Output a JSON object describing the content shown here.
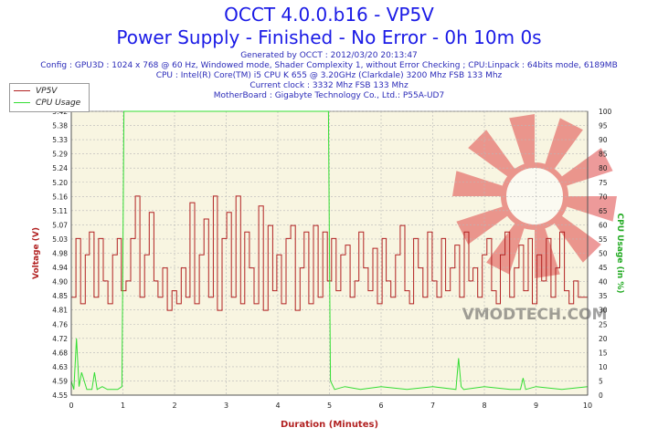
{
  "header": {
    "title": "OCCT 4.0.0.b16 - VP5V",
    "subtitle": "Power Supply - Finished - No Error - 0h 10m 0s",
    "info_lines": [
      "Generated by OCCT : 2012/03/20 20:13:47",
      "Config : GPU3D : 1024 x 768 @ 60 Hz, Windowed mode, Shader Complexity 1, without Error Checking ; CPU:Linpack : 64bits mode, 6189MB",
      "CPU : Intel(R) Core(TM) i5 CPU K 655 @ 3.20GHz (Clarkdale) 3200 Mhz FSB 133 Mhz",
      "Current clock : 3332 Mhz FSB 133 Mhz",
      "MotherBoard : Gigabyte Technology Co., Ltd.: P55A-UD7"
    ]
  },
  "watermark": {
    "text": "VMODTECH.COM",
    "color": "#e04848"
  },
  "chart_data": {
    "type": "line",
    "xlabel": "Duration (Minutes)",
    "ylabel": "Voltage (V)",
    "y2label": "CPU Usage (in %)",
    "xlim": [
      0,
      10
    ],
    "ylim": [
      4.55,
      5.42
    ],
    "y2lim": [
      0,
      100
    ],
    "x_ticks": [
      "0",
      "1",
      "2",
      "3",
      "4",
      "5",
      "6",
      "7",
      "8",
      "9",
      "10"
    ],
    "y_ticks": [
      "4.55",
      "4.59",
      "4.63",
      "4.68",
      "4.72",
      "4.76",
      "4.81",
      "4.85",
      "4.90",
      "4.94",
      "4.98",
      "5.03",
      "5.07",
      "5.11",
      "5.16",
      "5.20",
      "5.24",
      "5.29",
      "5.33",
      "5.38",
      "5.42"
    ],
    "y2_ticks": [
      "0",
      "5",
      "10",
      "15",
      "20",
      "25",
      "30",
      "35",
      "40",
      "45",
      "50",
      "55",
      "60",
      "65",
      "70",
      "75",
      "80",
      "85",
      "90",
      "95",
      "100"
    ],
    "grid": true,
    "legend_position": "top-left",
    "colors": {
      "VP5V": "#b22222",
      "CPU Usage": "#33dd33",
      "plot_bg": "#f8f5e1",
      "grid": "#b8b8b8"
    },
    "series": [
      {
        "name": "VP5V",
        "axis": "left",
        "x": [
          0.0,
          0.09,
          0.18,
          0.27,
          0.35,
          0.44,
          0.53,
          0.62,
          0.71,
          0.8,
          0.89,
          0.97,
          1.06,
          1.15,
          1.24,
          1.33,
          1.42,
          1.51,
          1.6,
          1.68,
          1.77,
          1.86,
          1.95,
          2.04,
          2.13,
          2.22,
          2.3,
          2.39,
          2.48,
          2.57,
          2.66,
          2.75,
          2.83,
          2.92,
          3.01,
          3.1,
          3.19,
          3.28,
          3.36,
          3.45,
          3.54,
          3.63,
          3.72,
          3.81,
          3.9,
          3.98,
          4.07,
          4.16,
          4.25,
          4.34,
          4.43,
          4.51,
          4.6,
          4.69,
          4.78,
          4.87,
          4.96,
          5.04,
          5.13,
          5.22,
          5.31,
          5.4,
          5.49,
          5.57,
          5.66,
          5.75,
          5.84,
          5.93,
          6.02,
          6.1,
          6.19,
          6.28,
          6.37,
          6.46,
          6.55,
          6.63,
          6.72,
          6.81,
          6.9,
          6.99,
          7.08,
          7.17,
          7.25,
          7.34,
          7.43,
          7.52,
          7.61,
          7.7,
          7.78,
          7.87,
          7.96,
          8.05,
          8.14,
          8.23,
          8.31,
          8.4,
          8.49,
          8.58,
          8.67,
          8.76,
          8.85,
          8.93,
          9.02,
          9.11,
          9.2,
          9.29,
          9.38,
          9.46,
          9.55,
          9.64,
          9.73,
          9.82,
          9.91,
          10.0
        ],
        "y": [
          4.85,
          5.03,
          4.83,
          4.98,
          5.05,
          4.85,
          5.03,
          4.9,
          4.83,
          4.98,
          5.03,
          4.87,
          4.9,
          5.03,
          5.16,
          4.85,
          4.98,
          5.11,
          4.9,
          4.85,
          4.94,
          4.81,
          4.87,
          4.83,
          4.94,
          4.85,
          5.14,
          4.83,
          4.98,
          5.09,
          4.85,
          5.16,
          4.81,
          5.03,
          5.11,
          4.85,
          5.16,
          4.83,
          5.05,
          4.94,
          4.83,
          5.13,
          4.81,
          5.07,
          4.87,
          4.98,
          4.83,
          5.03,
          5.07,
          4.81,
          4.94,
          5.05,
          4.83,
          5.07,
          4.85,
          5.05,
          4.9,
          5.03,
          4.87,
          4.98,
          5.01,
          4.85,
          4.9,
          5.05,
          4.94,
          4.87,
          5.0,
          4.83,
          5.03,
          4.9,
          4.85,
          4.98,
          5.07,
          4.87,
          4.83,
          5.03,
          4.94,
          4.85,
          5.05,
          4.9,
          4.85,
          5.03,
          4.87,
          4.94,
          5.01,
          4.85,
          5.05,
          4.9,
          4.94,
          4.85,
          4.98,
          5.03,
          4.87,
          4.83,
          4.98,
          5.05,
          4.85,
          4.94,
          5.01,
          4.87,
          5.03,
          4.83,
          4.98,
          4.9,
          5.03,
          4.85,
          4.94,
          5.05,
          4.87,
          4.83,
          4.9,
          4.85,
          4.85,
          4.9
        ]
      },
      {
        "name": "CPU Usage",
        "axis": "right",
        "x": [
          0.0,
          0.05,
          0.1,
          0.15,
          0.2,
          0.3,
          0.4,
          0.45,
          0.5,
          0.6,
          0.7,
          0.8,
          0.9,
          0.98,
          1.0,
          1.02,
          1.3,
          1.6,
          2.0,
          2.5,
          3.0,
          3.5,
          4.0,
          4.5,
          4.98,
          5.0,
          5.02,
          5.1,
          5.3,
          5.6,
          6.0,
          6.5,
          7.0,
          7.45,
          7.5,
          7.55,
          7.6,
          8.0,
          8.5,
          8.7,
          8.75,
          8.8,
          9.0,
          9.5,
          10.0
        ],
        "y": [
          5,
          2,
          20,
          3,
          8,
          2,
          2,
          8,
          2,
          3,
          2,
          2,
          2,
          3,
          50,
          100,
          100,
          100,
          100,
          100,
          100,
          100,
          100,
          100,
          100,
          50,
          5,
          2,
          3,
          2,
          3,
          2,
          3,
          2,
          13,
          3,
          2,
          3,
          2,
          2,
          6,
          2,
          3,
          2,
          3
        ]
      }
    ]
  }
}
